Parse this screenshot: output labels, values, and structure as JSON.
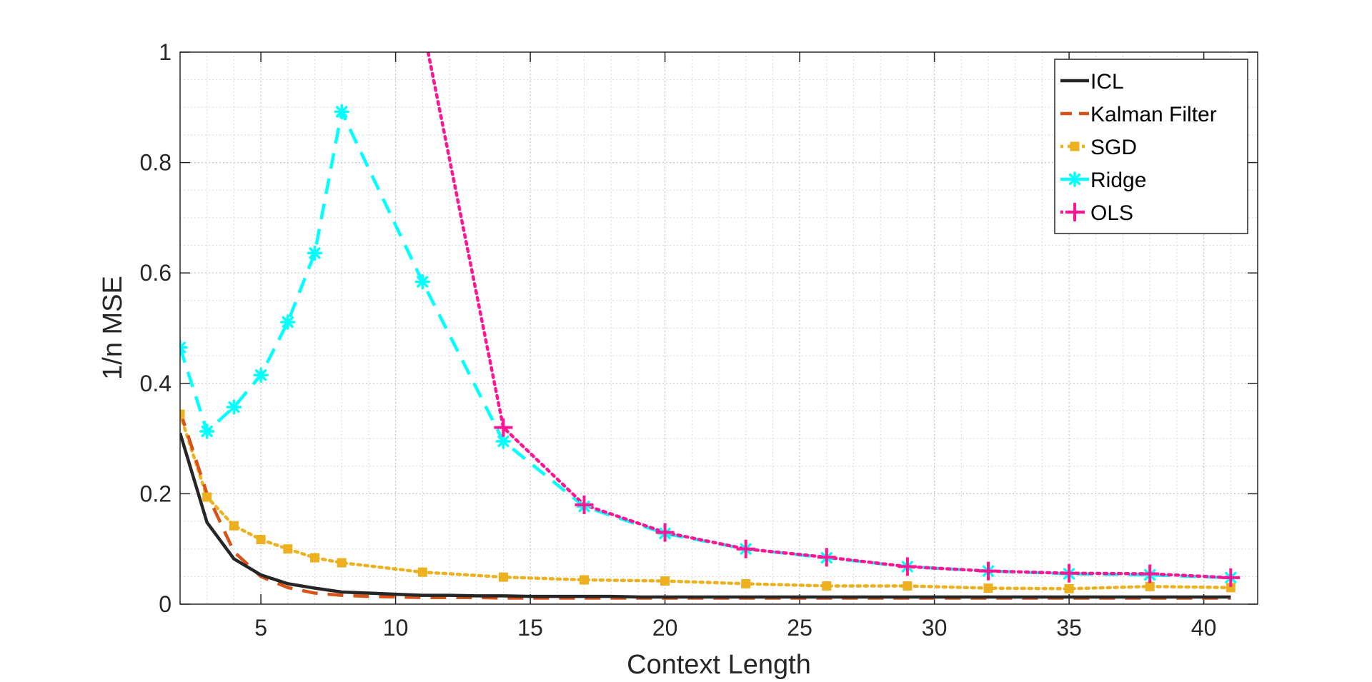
{
  "chart_data": {
    "type": "line",
    "title": "",
    "xlabel": "Context Length",
    "ylabel": "1/n MSE",
    "xlim": [
      2,
      42
    ],
    "ylim": [
      0,
      1
    ],
    "xticks": [
      5,
      10,
      15,
      20,
      25,
      30,
      35,
      40
    ],
    "yticks": [
      0,
      0.2,
      0.4,
      0.6,
      0.8,
      1
    ],
    "ytick_labels": [
      "0",
      "0.2",
      "0.4",
      "0.6",
      "0.8",
      "1"
    ],
    "grid": true,
    "minor_grid": true,
    "legend_position": "top-right",
    "series": [
      {
        "name": "ICL",
        "color": "#262626",
        "line_style": "solid",
        "marker": "none",
        "x": [
          2,
          3,
          4,
          5,
          6,
          7,
          8,
          9,
          10,
          11,
          12,
          13,
          14,
          15,
          16,
          17,
          18,
          19,
          20,
          21,
          22,
          23,
          24,
          25,
          26,
          27,
          28,
          29,
          30,
          31,
          32,
          33,
          34,
          35,
          36,
          37,
          38,
          39,
          40,
          41
        ],
        "y": [
          0.31,
          0.148,
          0.082,
          0.053,
          0.037,
          0.029,
          0.022,
          0.02,
          0.018,
          0.016,
          0.016,
          0.015,
          0.015,
          0.014,
          0.014,
          0.014,
          0.014,
          0.013,
          0.013,
          0.013,
          0.013,
          0.013,
          0.013,
          0.013,
          0.013,
          0.013,
          0.013,
          0.013,
          0.013,
          0.013,
          0.013,
          0.013,
          0.013,
          0.013,
          0.013,
          0.013,
          0.013,
          0.013,
          0.013,
          0.013
        ]
      },
      {
        "name": "Kalman Filter",
        "color": "#D95319",
        "line_style": "dashed",
        "marker": "none",
        "x": [
          2,
          3,
          4,
          5,
          6,
          7,
          8,
          9,
          10,
          11,
          12,
          13,
          14,
          15,
          16,
          17,
          18,
          19,
          20,
          21,
          22,
          23,
          24,
          25,
          26,
          27,
          28,
          29,
          30,
          31,
          32,
          33,
          34,
          35,
          36,
          37,
          38,
          39,
          40,
          41
        ],
        "y": [
          0.35,
          0.2,
          0.095,
          0.05,
          0.03,
          0.02,
          0.016,
          0.014,
          0.013,
          0.012,
          0.012,
          0.012,
          0.011,
          0.011,
          0.011,
          0.011,
          0.011,
          0.011,
          0.011,
          0.011,
          0.011,
          0.011,
          0.011,
          0.011,
          0.011,
          0.011,
          0.011,
          0.011,
          0.011,
          0.011,
          0.011,
          0.011,
          0.011,
          0.011,
          0.011,
          0.011,
          0.011,
          0.011,
          0.011,
          0.011
        ]
      },
      {
        "name": "SGD",
        "color": "#EDB120",
        "line_style": "dotted",
        "marker": "square",
        "x": [
          2,
          3,
          4,
          5,
          6,
          7,
          8,
          11,
          14,
          17,
          20,
          23,
          26,
          29,
          32,
          35,
          38,
          41
        ],
        "y": [
          0.344,
          0.194,
          0.142,
          0.117,
          0.1,
          0.084,
          0.075,
          0.058,
          0.049,
          0.044,
          0.042,
          0.037,
          0.033,
          0.033,
          0.029,
          0.028,
          0.032,
          0.03
        ]
      },
      {
        "name": "Ridge",
        "color": "#00FFFF",
        "line_style": "dashed",
        "marker": "star",
        "x": [
          2,
          3,
          4,
          5,
          6,
          7,
          8,
          11,
          14,
          17,
          20,
          23,
          26,
          29,
          32,
          35,
          38,
          41
        ],
        "y": [
          0.465,
          0.313,
          0.357,
          0.415,
          0.511,
          0.636,
          0.892,
          0.584,
          0.295,
          0.177,
          0.128,
          0.1,
          0.084,
          0.068,
          0.06,
          0.055,
          0.053,
          0.048
        ]
      },
      {
        "name": "OLS",
        "color": "#FF1493",
        "line_style": "dotted",
        "marker": "plus",
        "x": [
          11,
          14,
          17,
          20,
          23,
          26,
          29,
          32,
          35,
          38,
          41
        ],
        "y": [
          1.05,
          0.32,
          0.18,
          0.13,
          0.1,
          0.085,
          0.068,
          0.06,
          0.056,
          0.055,
          0.048
        ]
      }
    ]
  }
}
